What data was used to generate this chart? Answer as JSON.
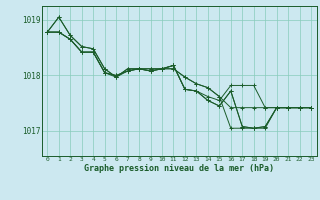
{
  "xlabel": "Graphe pression niveau de la mer (hPa)",
  "bg_color": "#cce8f0",
  "grid_color": "#88ccbb",
  "line_color": "#1a5c2a",
  "spine_color": "#1a5c2a",
  "xlim": [
    -0.5,
    23.5
  ],
  "ylim": [
    1016.55,
    1019.25
  ],
  "yticks": [
    1017,
    1018,
    1019
  ],
  "xticks": [
    0,
    1,
    2,
    3,
    4,
    5,
    6,
    7,
    8,
    9,
    10,
    11,
    12,
    13,
    14,
    15,
    16,
    17,
    18,
    19,
    20,
    21,
    22,
    23
  ],
  "series": [
    [
      1018.78,
      1019.05,
      1018.72,
      1018.52,
      1018.48,
      1018.12,
      1017.97,
      1018.12,
      1018.12,
      1018.12,
      1018.12,
      1018.12,
      1017.97,
      1017.85,
      1017.78,
      1017.62,
      1017.42,
      1017.42,
      1017.42,
      1017.42,
      1017.42,
      1017.42,
      1017.42,
      1017.42
    ],
    [
      1018.78,
      1019.05,
      1018.72,
      1018.52,
      1018.48,
      1018.12,
      1017.97,
      1018.12,
      1018.12,
      1018.12,
      1018.12,
      1018.12,
      1017.97,
      1017.85,
      1017.78,
      1017.62,
      1017.05,
      1017.05,
      1017.05,
      1017.05,
      1017.42,
      1017.42,
      1017.42,
      1017.42
    ],
    [
      1018.78,
      1018.78,
      1018.65,
      1018.42,
      1018.42,
      1018.05,
      1018.0,
      1018.08,
      1018.12,
      1018.08,
      1018.12,
      1018.18,
      1017.75,
      1017.72,
      1017.62,
      1017.55,
      1017.82,
      1017.82,
      1017.82,
      1017.42,
      1017.42,
      1017.42,
      1017.42,
      1017.42
    ],
    [
      1018.78,
      1018.78,
      1018.65,
      1018.42,
      1018.42,
      1018.05,
      1018.0,
      1018.08,
      1018.12,
      1018.08,
      1018.12,
      1018.18,
      1017.75,
      1017.72,
      1017.55,
      1017.45,
      1017.72,
      1017.08,
      1017.05,
      1017.08,
      1017.42,
      1017.42,
      1017.42,
      1017.42
    ],
    [
      1018.78,
      1018.78,
      1018.65,
      1018.42,
      1018.42,
      1018.05,
      1017.97,
      1018.08,
      1018.12,
      1018.08,
      1018.12,
      1018.18,
      1017.75,
      1017.72,
      1017.55,
      1017.45,
      1017.72,
      1017.08,
      1017.05,
      1017.08,
      1017.42,
      1017.42,
      1017.42,
      1017.42
    ]
  ]
}
